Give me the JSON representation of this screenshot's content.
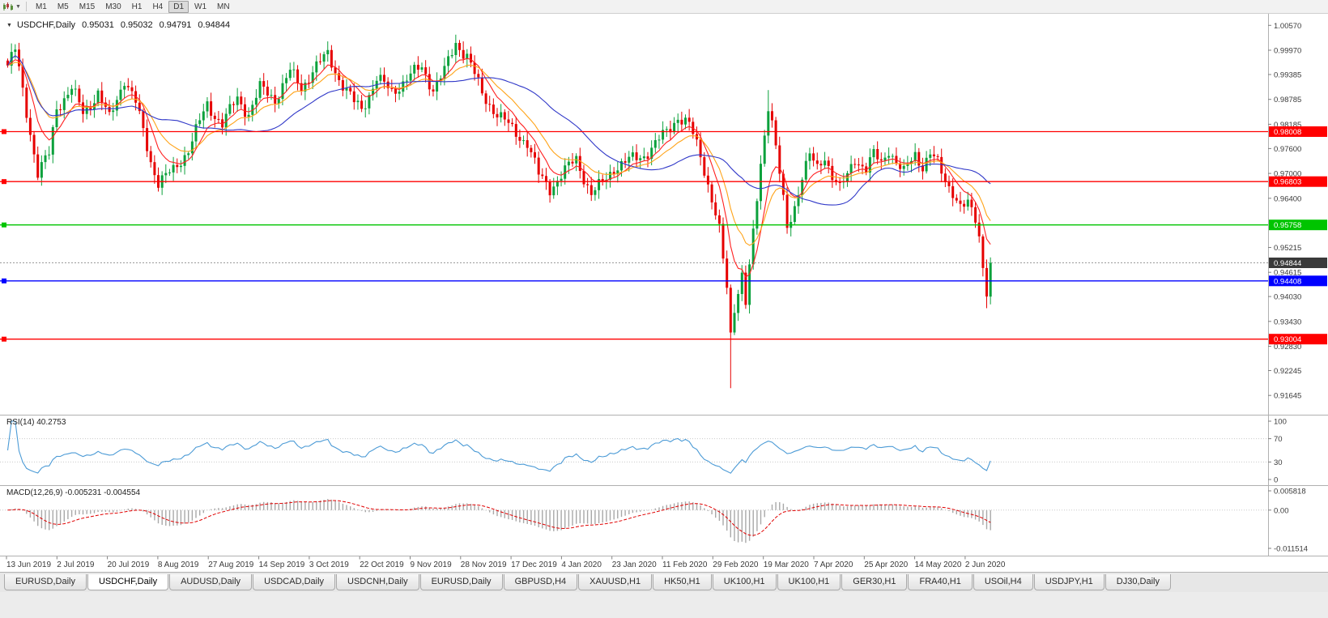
{
  "toolbar": {
    "timeframes": [
      "M1",
      "M5",
      "M15",
      "M30",
      "H1",
      "H4",
      "D1",
      "W1",
      "MN"
    ],
    "active_timeframe": "D1"
  },
  "chart_header": {
    "symbol": "USDCHF,Daily",
    "open": "0.95031",
    "high": "0.95032",
    "low": "0.94791",
    "close": "0.94844"
  },
  "indicators": {
    "rsi": {
      "label": "RSI(14) 40.2753",
      "period": 14,
      "value": "40.2753",
      "axis_ticks": [
        "100",
        "70",
        "30",
        "0"
      ],
      "levels": [
        70,
        30
      ],
      "color": "#4C9BD6"
    },
    "macd": {
      "label": "MACD(12,26,9) -0.005231 -0.004554",
      "fast": 12,
      "slow": 26,
      "signal": 9,
      "value_main": "-0.005231",
      "value_signal": "-0.004554",
      "axis_ticks": [
        "0.005818",
        "0.00",
        "-0.011514"
      ],
      "histogram_color": "#A8A8A8",
      "signal_color": "#E00000"
    }
  },
  "chart_data": {
    "type": "candlestick",
    "symbol": "USDCHF",
    "timeframe": "Daily",
    "x_tick_labels": [
      "13 Jun 2019",
      "2 Jul 2019",
      "20 Jul 2019",
      "8 Aug 2019",
      "27 Aug 2019",
      "14 Sep 2019",
      "3 Oct 2019",
      "22 Oct 2019",
      "9 Nov 2019",
      "28 Nov 2019",
      "17 Dec 2019",
      "4 Jan 2020",
      "23 Jan 2020",
      "11 Feb 2020",
      "29 Feb 2020",
      "19 Mar 2020",
      "7 Apr 2020",
      "25 Apr 2020",
      "14 May 2020",
      "2 Jun 2020"
    ],
    "y_tick_labels": [
      "1.00570",
      "0.99970",
      "0.99385",
      "0.98785",
      "0.98185",
      "0.97600",
      "0.97000",
      "0.96400",
      "0.95215",
      "0.94615",
      "0.94030",
      "0.93430",
      "0.92830",
      "0.92245",
      "0.91645"
    ],
    "y_range": [
      0.912,
      1.0085
    ],
    "bar_count": 262,
    "bars_per_x_tick": 13.4,
    "up_color": "#0CA13C",
    "down_color": "#E60000",
    "price_path_anchors": [
      [
        0,
        0.996
      ],
      [
        2,
        0.9996
      ],
      [
        4,
        0.99
      ],
      [
        8,
        0.97
      ],
      [
        11,
        0.9745
      ],
      [
        13,
        0.986
      ],
      [
        17,
        0.9905
      ],
      [
        20,
        0.9845
      ],
      [
        24,
        0.9895
      ],
      [
        27,
        0.983
      ],
      [
        31,
        0.993
      ],
      [
        34,
        0.987
      ],
      [
        38,
        0.973
      ],
      [
        40,
        0.968
      ],
      [
        44,
        0.9705
      ],
      [
        48,
        0.976
      ],
      [
        53,
        0.9865
      ],
      [
        57,
        0.982
      ],
      [
        61,
        0.988
      ],
      [
        64,
        0.9845
      ],
      [
        67,
        0.9905
      ],
      [
        71,
        0.988
      ],
      [
        75,
        0.9945
      ],
      [
        78,
        0.9905
      ],
      [
        81,
        0.995
      ],
      [
        85,
        0.9985
      ],
      [
        88,
        0.993
      ],
      [
        92,
        0.987
      ],
      [
        94,
        0.9855
      ],
      [
        98,
        0.993
      ],
      [
        102,
        0.9895
      ],
      [
        106,
        0.993
      ],
      [
        110,
        0.9955
      ],
      [
        113,
        0.9905
      ],
      [
        116,
        0.9945
      ],
      [
        119,
        1.0015
      ],
      [
        122,
        0.9985
      ],
      [
        126,
        0.989
      ],
      [
        130,
        0.9845
      ],
      [
        134,
        0.9805
      ],
      [
        138,
        0.9775
      ],
      [
        141,
        0.9695
      ],
      [
        144,
        0.9665
      ],
      [
        148,
        0.9705
      ],
      [
        151,
        0.9735
      ],
      [
        155,
        0.965
      ],
      [
        158,
        0.9675
      ],
      [
        161,
        0.9715
      ],
      [
        165,
        0.973
      ],
      [
        169,
        0.9745
      ],
      [
        172,
        0.977
      ],
      [
        175,
        0.98
      ],
      [
        178,
        0.9838
      ],
      [
        181,
        0.9815
      ],
      [
        184,
        0.9745
      ],
      [
        187,
        0.964
      ],
      [
        189,
        0.956
      ],
      [
        191,
        0.942
      ],
      [
        192,
        0.931
      ],
      [
        193,
        0.938
      ],
      [
        195,
        0.946
      ],
      [
        196,
        0.939
      ],
      [
        198,
        0.955
      ],
      [
        200,
        0.972
      ],
      [
        202,
        0.987
      ],
      [
        203,
        0.983
      ],
      [
        205,
        0.97
      ],
      [
        207,
        0.956
      ],
      [
        209,
        0.962
      ],
      [
        211,
        0.97
      ],
      [
        213,
        0.9745
      ],
      [
        215,
        0.9705
      ],
      [
        217,
        0.974
      ],
      [
        219,
        0.97
      ],
      [
        221,
        0.9665
      ],
      [
        223,
        0.969
      ],
      [
        225,
        0.9735
      ],
      [
        228,
        0.9715
      ],
      [
        230,
        0.9745
      ],
      [
        232,
        0.972
      ],
      [
        234,
        0.976
      ],
      [
        236,
        0.973
      ],
      [
        238,
        0.97
      ],
      [
        241,
        0.9745
      ],
      [
        243,
        0.972
      ],
      [
        245,
        0.975
      ],
      [
        247,
        0.972
      ],
      [
        249,
        0.968
      ],
      [
        251,
        0.966
      ],
      [
        253,
        0.962
      ],
      [
        255,
        0.9622
      ],
      [
        257,
        0.959
      ],
      [
        258,
        0.955
      ],
      [
        259,
        0.948
      ],
      [
        260,
        0.942
      ],
      [
        261,
        0.94844
      ]
    ],
    "wick_overrides": {
      "2": {
        "high": 1.0005
      },
      "8": {
        "low": 0.969
      },
      "40": {
        "low": 0.9659
      },
      "119": {
        "high": 1.0028
      },
      "155": {
        "low": 0.9646
      },
      "192": {
        "low": 0.9182
      },
      "202": {
        "high": 0.9901
      },
      "260": {
        "low": 0.9375
      }
    },
    "moving_averages": [
      {
        "type": "ema",
        "period": 8,
        "color": "#FF2020"
      },
      {
        "type": "ema",
        "period": 16,
        "color": "#FFA318"
      },
      {
        "type": "sma",
        "period": 34,
        "color": "#3038C8"
      }
    ],
    "hlines": [
      {
        "price": 0.98008,
        "label": "0.98008",
        "color": "#FF0000"
      },
      {
        "price": 0.96803,
        "label": "0.96803",
        "color": "#FF0000"
      },
      {
        "price": 0.95758,
        "label": "0.95758",
        "color": "#00C400"
      },
      {
        "price": 0.94408,
        "label": "0.94408",
        "color": "#0000FF"
      },
      {
        "price": 0.93004,
        "label": "0.93004",
        "color": "#FF0000"
      }
    ],
    "current_price": {
      "price": 0.94844,
      "label": "0.94844",
      "tag_color": "#3A3A3A"
    }
  },
  "tabs": {
    "items": [
      "EURUSD,Daily",
      "USDCHF,Daily",
      "AUDUSD,Daily",
      "USDCAD,Daily",
      "USDCNH,Daily",
      "EURUSD,Daily",
      "GBPUSD,H4",
      "XAUUSD,H1",
      "HK50,H1",
      "UK100,H1",
      "UK100,H1",
      "GER30,H1",
      "FRA40,H1",
      "USOil,H4",
      "USDJPY,H1",
      "DJ30,Daily"
    ],
    "active_index": 1
  }
}
